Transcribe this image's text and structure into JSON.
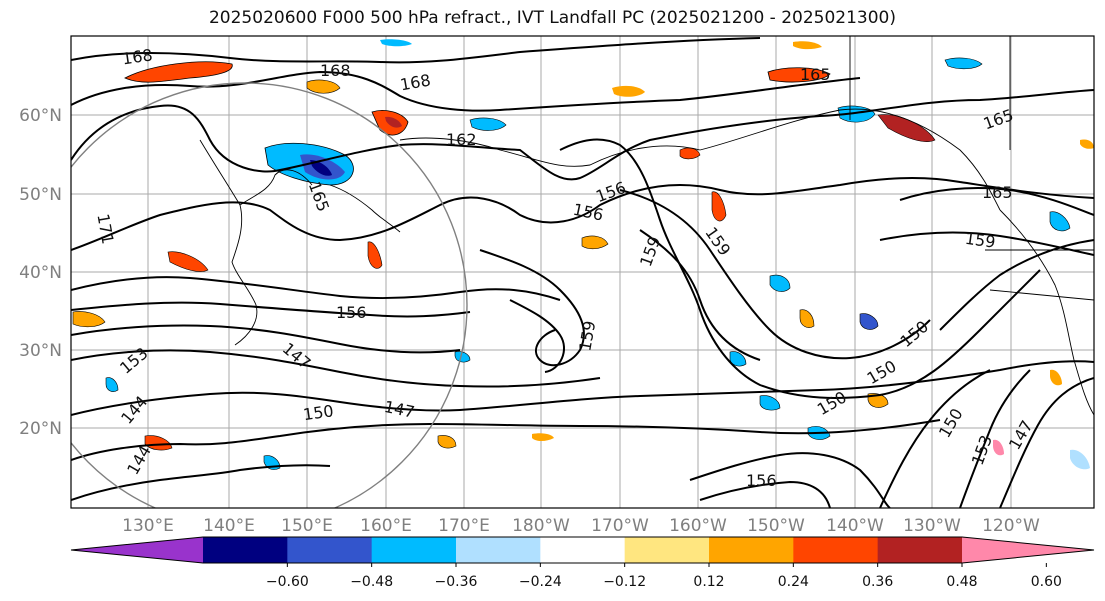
{
  "title": "2025020600 F000 500 hPa refract., IVT Landfall PC (2025021200 - 2025021300)",
  "map": {
    "lon_labels": [
      "130°E",
      "140°E",
      "150°E",
      "160°E",
      "170°E",
      "180°W",
      "170°W",
      "160°W",
      "150°W",
      "140°W",
      "130°W",
      "120°W"
    ],
    "lat_labels": [
      "60°N",
      "50°N",
      "40°N",
      "30°N",
      "20°N"
    ],
    "contour_labels": [
      {
        "text": "168"
      },
      {
        "text": "168"
      },
      {
        "text": "168"
      },
      {
        "text": "165"
      },
      {
        "text": "165"
      },
      {
        "text": "165"
      },
      {
        "text": "162"
      },
      {
        "text": "165"
      },
      {
        "text": "171"
      },
      {
        "text": "156"
      },
      {
        "text": "156"
      },
      {
        "text": "159"
      },
      {
        "text": "159"
      },
      {
        "text": "159"
      },
      {
        "text": "156"
      },
      {
        "text": "153"
      },
      {
        "text": "147"
      },
      {
        "text": "144"
      },
      {
        "text": "150"
      },
      {
        "text": "147"
      },
      {
        "text": "150"
      },
      {
        "text": "150"
      },
      {
        "text": "150"
      },
      {
        "text": "153"
      },
      {
        "text": "147"
      },
      {
        "text": "150"
      },
      {
        "text": "144"
      },
      {
        "text": "156"
      },
      {
        "text": "159"
      }
    ]
  },
  "colorbar": {
    "colors": [
      "#9933cc",
      "#000080",
      "#3355cc",
      "#00bbff",
      "#b0e0ff",
      "#ffffff",
      "#ffe680",
      "#ffa500",
      "#ff4500",
      "#b22222",
      "#ff88aa"
    ],
    "tick_labels": [
      "−0.60",
      "−0.48",
      "−0.36",
      "−0.24",
      "−0.12",
      "0.12",
      "0.24",
      "0.36",
      "0.48",
      "0.60"
    ]
  }
}
